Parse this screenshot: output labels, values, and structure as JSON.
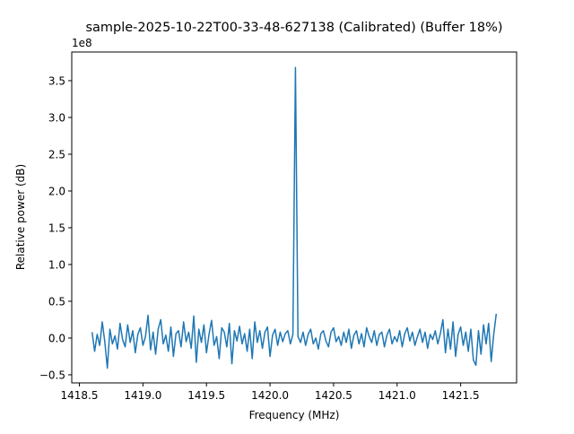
{
  "chart_data": {
    "type": "line",
    "title": "sample-2025-10-22T00-33-48-627138 (Calibrated) (Buffer 18%)",
    "xlabel": "Frequency (MHz)",
    "ylabel": "Relative power (dB)",
    "y_offset_label": "1e8",
    "y_multiplier": 100000000,
    "xlim": [
      1418.44,
      1421.94
    ],
    "ylim": [
      -0.61,
      3.89
    ],
    "x_ticks": [
      "1418.5",
      "1419.0",
      "1419.5",
      "1420.0",
      "1420.5",
      "1421.0",
      "1421.5"
    ],
    "y_ticks": [
      "−0.5",
      "0.0",
      "0.5",
      "1.0",
      "1.5",
      "2.0",
      "2.5",
      "3.0",
      "3.5"
    ],
    "grid": false,
    "line_color": "#1f77b4",
    "series": [
      {
        "x": {
          "start": 1418.6,
          "stop": 1421.78
        },
        "values": [
          0.08,
          -0.18,
          0.05,
          -0.1,
          0.22,
          -0.05,
          -0.41,
          0.12,
          -0.08,
          0.03,
          -0.15,
          0.2,
          -0.02,
          -0.12,
          0.18,
          -0.06,
          0.1,
          -0.2,
          0.05,
          0.14,
          -0.1,
          0.02,
          0.31,
          -0.16,
          0.08,
          -0.22,
          0.12,
          0.25,
          -0.08,
          0.04,
          -0.18,
          0.15,
          -0.25,
          0.06,
          0.1,
          -0.12,
          0.22,
          -0.05,
          0.08,
          -0.14,
          0.3,
          -0.33,
          0.12,
          -0.06,
          0.18,
          -0.2,
          0.05,
          0.24,
          -0.1,
          0.02,
          -0.28,
          0.14,
          0.08,
          -0.12,
          0.2,
          -0.35,
          0.1,
          -0.04,
          0.16,
          -0.08,
          0.06,
          -0.18,
          0.12,
          -0.28,
          0.22,
          -0.06,
          0.1,
          -0.14,
          0.08,
          0.15,
          -0.25,
          0.04,
          0.12,
          -0.1,
          0.08,
          -0.05,
          0.06,
          0.1,
          -0.08,
          0.05,
          3.68,
          0.02,
          -0.06,
          0.08,
          -0.1,
          0.05,
          0.12,
          -0.08,
          0.0,
          -0.15,
          0.06,
          0.1,
          -0.04,
          -0.12,
          0.08,
          0.14,
          -0.05,
          0.02,
          -0.1,
          0.08,
          -0.06,
          0.12,
          -0.14,
          0.04,
          0.1,
          -0.08,
          0.06,
          -0.12,
          0.14,
          0.02,
          -0.06,
          0.1,
          -0.1,
          0.05,
          0.08,
          -0.12,
          0.04,
          0.12,
          -0.08,
          0.02,
          -0.05,
          0.1,
          -0.12,
          0.06,
          0.14,
          -0.04,
          0.08,
          -0.1,
          0.02,
          0.12,
          -0.06,
          0.08,
          -0.14,
          0.05,
          -0.02,
          0.1,
          -0.08,
          0.06,
          0.25,
          -0.2,
          0.12,
          -0.15,
          0.22,
          -0.25,
          0.05,
          0.15,
          -0.1,
          0.08,
          -0.18,
          0.12,
          -0.3,
          -0.37,
          0.1,
          -0.22,
          0.18,
          -0.08,
          0.2,
          -0.32,
          0.05,
          0.33
        ]
      }
    ]
  }
}
